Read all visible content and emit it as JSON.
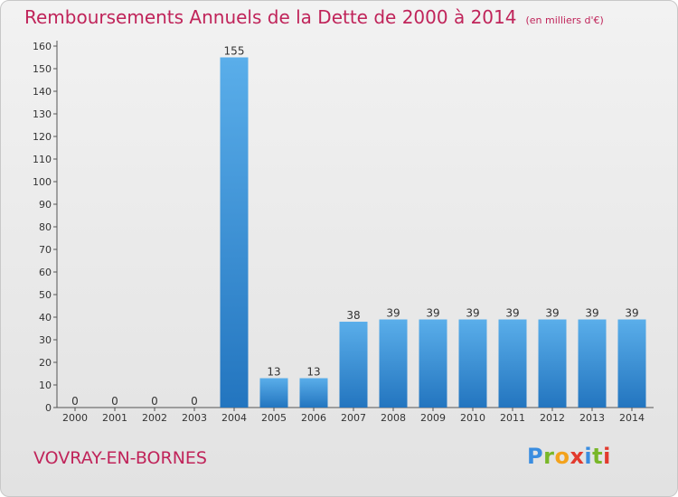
{
  "header": {
    "title": "Remboursements Annuels de la Dette de 2000 à 2014",
    "unit": "(en milliers d'€)"
  },
  "footer": {
    "town": "VOVRAY-EN-BORNES",
    "logo": "Proxiti"
  },
  "colors": {
    "accent": "#c0245a",
    "bar_top": "#5aaeea",
    "bar_bottom": "#2375bf"
  },
  "chart_data": {
    "type": "bar",
    "title": "Remboursements Annuels de la Dette de 2000 à 2014",
    "xlabel": "",
    "ylabel": "",
    "ylim": [
      0,
      160
    ],
    "yticks": [
      0,
      10,
      20,
      30,
      40,
      50,
      60,
      70,
      80,
      90,
      100,
      110,
      120,
      130,
      140,
      150,
      160
    ],
    "categories": [
      "2000",
      "2001",
      "2002",
      "2003",
      "2004",
      "2005",
      "2006",
      "2007",
      "2008",
      "2009",
      "2010",
      "2011",
      "2012",
      "2013",
      "2014"
    ],
    "values": [
      0,
      0,
      0,
      0,
      155,
      13,
      13,
      38,
      39,
      39,
      39,
      39,
      39,
      39,
      39
    ],
    "grid": false,
    "legend": "none"
  }
}
